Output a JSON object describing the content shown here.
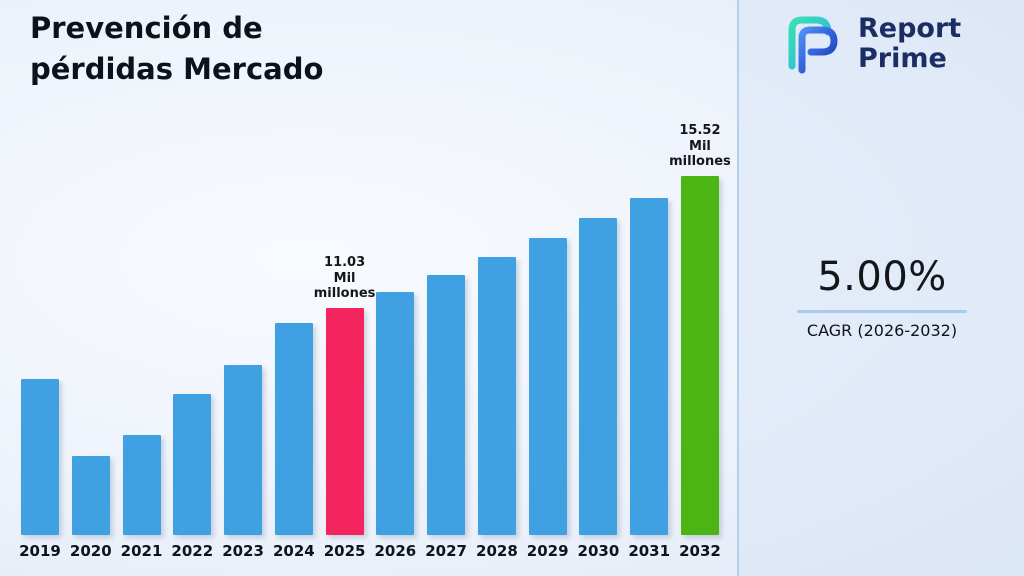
{
  "header": {
    "title_lines": [
      "Prevención de",
      "pérdidas Mercado"
    ]
  },
  "logo": {
    "brand_line1": "Report",
    "brand_line2": "Prime",
    "brand_color": "#1c2d63",
    "mark_teal": "#35d6a8",
    "mark_blue": "#1d3cc0"
  },
  "stat": {
    "value": "5.00%",
    "label": "CAGR (2026-2032)",
    "underline_color": "#a6cbeb"
  },
  "chart_data": {
    "type": "bar",
    "title": "Prevención de pérdidas Mercado",
    "categories": [
      "2019",
      "2020",
      "2021",
      "2022",
      "2023",
      "2024",
      "2025",
      "2026",
      "2027",
      "2028",
      "2029",
      "2030",
      "2031",
      "2032"
    ],
    "values": [
      8.6,
      6.0,
      6.7,
      8.1,
      9.1,
      10.5,
      11.03,
      11.58,
      12.16,
      12.77,
      13.41,
      14.08,
      14.78,
      15.52
    ],
    "unit": "Mil millones",
    "ylabel": "",
    "xlabel": "",
    "ylim": [
      3.3,
      16.5
    ],
    "y_baseline": 3.3,
    "gridlines": false,
    "legend": false,
    "bar_color_default": "#3FA0E2",
    "bar_color_overrides": {
      "2025": "#F4245E",
      "2032": "#4DB513"
    },
    "annotations": [
      {
        "category": "2025",
        "lines": [
          "11.03",
          "Mil",
          "millones"
        ]
      },
      {
        "category": "2032",
        "lines": [
          "15.52",
          "Mil",
          "millones"
        ]
      }
    ]
  }
}
